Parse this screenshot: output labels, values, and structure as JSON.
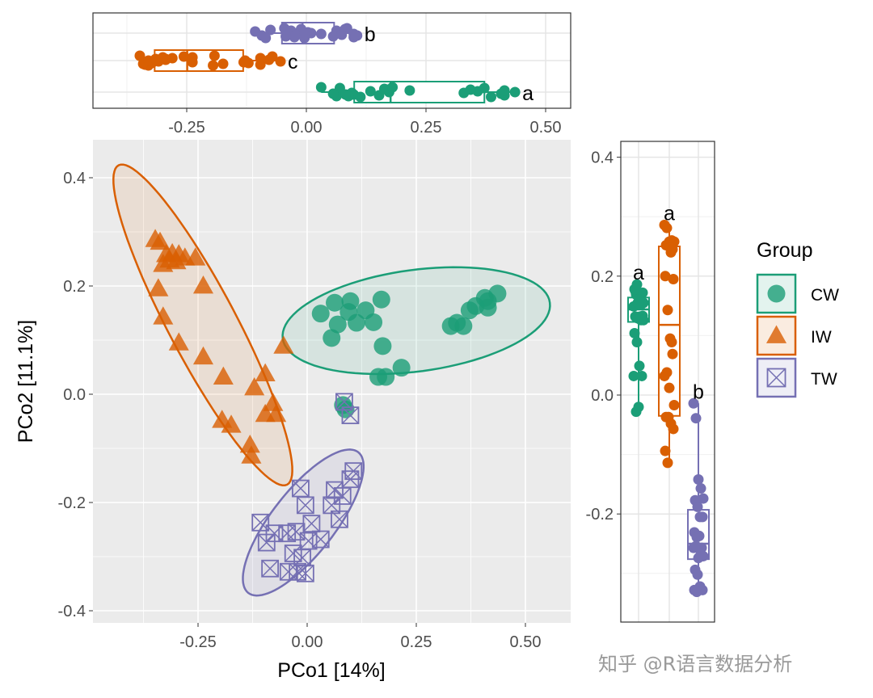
{
  "chart_data": {
    "type": "scatter",
    "xlabel": "PCo1 [14%]",
    "ylabel": "PCo2 [11.1%]",
    "xlim": [
      -0.47,
      0.6
    ],
    "ylim": [
      -0.42,
      0.47
    ],
    "x_ticks": [
      -0.25,
      0.0,
      0.25,
      0.5
    ],
    "x_tick_labels": [
      "-0.25",
      "0.00",
      "0.25",
      "0.50"
    ],
    "y_ticks": [
      -0.4,
      -0.2,
      0.0,
      0.2,
      0.4
    ],
    "y_tick_labels": [
      "-0.4",
      "-0.2",
      "0.0",
      "0.2",
      "0.4"
    ],
    "grid": true,
    "legend": {
      "title": "Group",
      "position": "right"
    },
    "series": [
      {
        "name": "CW",
        "color": "#1b9e77",
        "shape": "circle",
        "x": [
          0.031,
          0.063,
          0.099,
          0.095,
          0.134,
          0.17,
          0.07,
          0.113,
          0.152,
          0.056,
          0.173,
          0.216,
          0.163,
          0.18,
          0.088,
          0.082,
          0.329,
          0.358,
          0.343,
          0.372,
          0.386,
          0.414,
          0.407,
          0.436,
          0.414
        ],
        "y": [
          0.149,
          0.169,
          0.172,
          0.152,
          0.155,
          0.175,
          0.129,
          0.132,
          0.133,
          0.104,
          0.089,
          0.049,
          0.032,
          0.032,
          -0.028,
          -0.02,
          0.126,
          0.126,
          0.132,
          0.155,
          0.163,
          0.172,
          0.178,
          0.186,
          0.16
        ],
        "ellipse": {
          "center": [
            0.25,
            0.136
          ],
          "u": [
            0.306,
            0.033
          ],
          "v": [
            0.015,
            -0.093
          ]
        }
      },
      {
        "name": "IW",
        "color": "#d95f02",
        "shape": "triangle",
        "x": [
          -0.348,
          -0.337,
          -0.323,
          -0.309,
          -0.294,
          -0.28,
          -0.256,
          -0.33,
          -0.341,
          -0.238,
          -0.33,
          -0.294,
          -0.238,
          -0.192,
          -0.096,
          -0.121,
          -0.054,
          -0.078,
          -0.096,
          -0.071,
          -0.195,
          -0.174,
          -0.131,
          -0.128,
          -0.315,
          -0.3
        ],
        "y": [
          0.286,
          0.281,
          0.258,
          0.26,
          0.258,
          0.252,
          0.252,
          0.24,
          0.195,
          0.2,
          0.143,
          0.095,
          0.069,
          0.032,
          0.038,
          0.012,
          0.089,
          -0.017,
          -0.037,
          -0.037,
          -0.048,
          -0.057,
          -0.094,
          -0.114,
          0.248,
          0.245
        ],
        "ellipse": {
          "center": [
            -0.239,
            0.128
          ],
          "u": [
            -0.193,
            0.295
          ],
          "v": [
            0.069,
            0.029
          ]
        }
      },
      {
        "name": "TW",
        "color": "#7570b3",
        "shape": "square-cross",
        "x": [
          0.085,
          0.099,
          0.106,
          0.099,
          -0.015,
          0.063,
          0.081,
          -0.004,
          0.056,
          0.074,
          0.01,
          -0.107,
          -0.075,
          -0.046,
          -0.025,
          -0.093,
          0.031,
          0.003,
          -0.032,
          -0.011,
          -0.085,
          -0.043,
          -0.022,
          -0.004
        ],
        "y": [
          -0.014,
          -0.039,
          -0.142,
          -0.157,
          -0.174,
          -0.177,
          -0.188,
          -0.205,
          -0.205,
          -0.231,
          -0.239,
          -0.237,
          -0.257,
          -0.257,
          -0.254,
          -0.274,
          -0.268,
          -0.271,
          -0.294,
          -0.302,
          -0.322,
          -0.328,
          -0.328,
          -0.331
        ],
        "ellipse": {
          "center": [
            -0.009,
            -0.237
          ],
          "u": [
            0.126,
            0.13
          ],
          "v": [
            0.057,
            -0.036
          ]
        }
      }
    ],
    "top_boxplot": {
      "axis": "PCo1",
      "order": [
        "TW",
        "IW",
        "CW"
      ],
      "boxes": {
        "CW": {
          "q1": 0.1,
          "median": 0.176,
          "q3": 0.372,
          "letter": "a"
        },
        "IW": {
          "q1": -0.317,
          "median": -0.249,
          "q3": -0.132,
          "letter": "c"
        },
        "TW": {
          "q1": -0.051,
          "median": -0.008,
          "q3": 0.058,
          "letter": "b"
        }
      }
    },
    "right_boxplot": {
      "axis": "PCo2",
      "order": [
        "CW",
        "IW",
        "TW"
      ],
      "boxes": {
        "CW": {
          "q1": 0.123,
          "median": 0.144,
          "q3": 0.164,
          "letter": "a"
        },
        "IW": {
          "q1": -0.035,
          "median": 0.118,
          "q3": 0.25,
          "letter": "a"
        },
        "TW": {
          "q1": -0.276,
          "median": -0.25,
          "q3": -0.193,
          "letter": "b"
        }
      }
    }
  },
  "watermark": "知乎 @R语言数据分析"
}
